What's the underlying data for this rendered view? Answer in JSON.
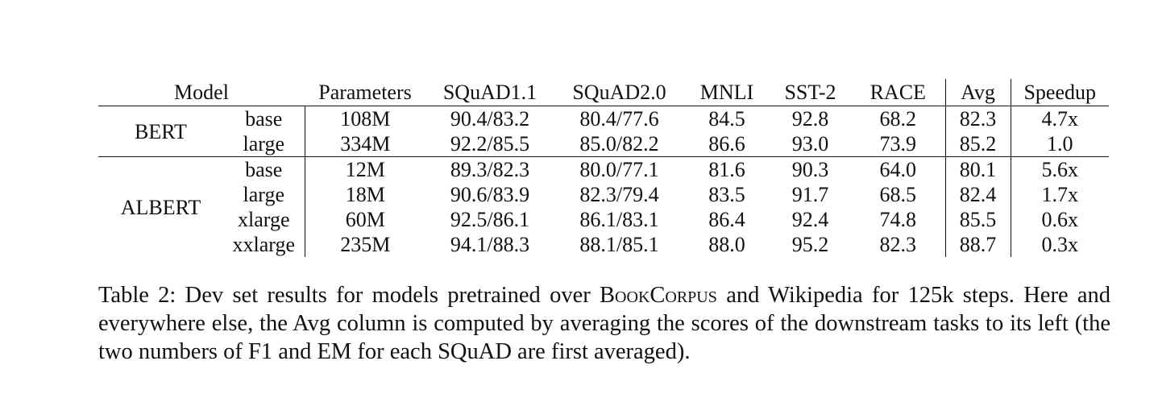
{
  "table": {
    "headers": {
      "model": "Model",
      "parameters": "Parameters",
      "squad11": "SQuAD1.1",
      "squad20": "SQuAD2.0",
      "mnli": "MNLI",
      "sst2": "SST-2",
      "race": "RACE",
      "avg": "Avg",
      "speedup": "Speedup"
    },
    "groups": [
      {
        "name": "BERT",
        "rows": [
          {
            "size": "base",
            "parameters": "108M",
            "squad11": "90.4/83.2",
            "squad20": "80.4/77.6",
            "mnli": "84.5",
            "sst2": "92.8",
            "race": "68.2",
            "avg": "82.3",
            "speedup": "4.7x"
          },
          {
            "size": "large",
            "parameters": "334M",
            "squad11": "92.2/85.5",
            "squad20": "85.0/82.2",
            "mnli": "86.6",
            "sst2": "93.0",
            "race": "73.9",
            "avg": "85.2",
            "speedup": "1.0"
          }
        ]
      },
      {
        "name": "ALBERT",
        "rows": [
          {
            "size": "base",
            "parameters": "12M",
            "squad11": "89.3/82.3",
            "squad20": "80.0/77.1",
            "mnli": "81.6",
            "sst2": "90.3",
            "race": "64.0",
            "avg": "80.1",
            "speedup": "5.6x"
          },
          {
            "size": "large",
            "parameters": "18M",
            "squad11": "90.6/83.9",
            "squad20": "82.3/79.4",
            "mnli": "83.5",
            "sst2": "91.7",
            "race": "68.5",
            "avg": "82.4",
            "speedup": "1.7x"
          },
          {
            "size": "xlarge",
            "parameters": "60M",
            "squad11": "92.5/86.1",
            "squad20": "86.1/83.1",
            "mnli": "86.4",
            "sst2": "92.4",
            "race": "74.8",
            "avg": "85.5",
            "speedup": "0.6x"
          },
          {
            "size": "xxlarge",
            "parameters": "235M",
            "squad11": "94.1/88.3",
            "squad20": "88.1/85.1",
            "mnli": "88.0",
            "sst2": "95.2",
            "race": "82.3",
            "avg": "88.7",
            "speedup": "0.3x"
          }
        ]
      }
    ]
  },
  "caption": {
    "label": "Table 2:",
    "text_1": "Dev set results for models pretrained over",
    "corpus": "BookCorpus",
    "text_2": "and Wikipedia for 125k steps. Here and everywhere else, the Avg column is computed by averaging the scores of the downstream tasks to its left (the two numbers of F1 and EM for each SQuAD are first averaged)."
  }
}
